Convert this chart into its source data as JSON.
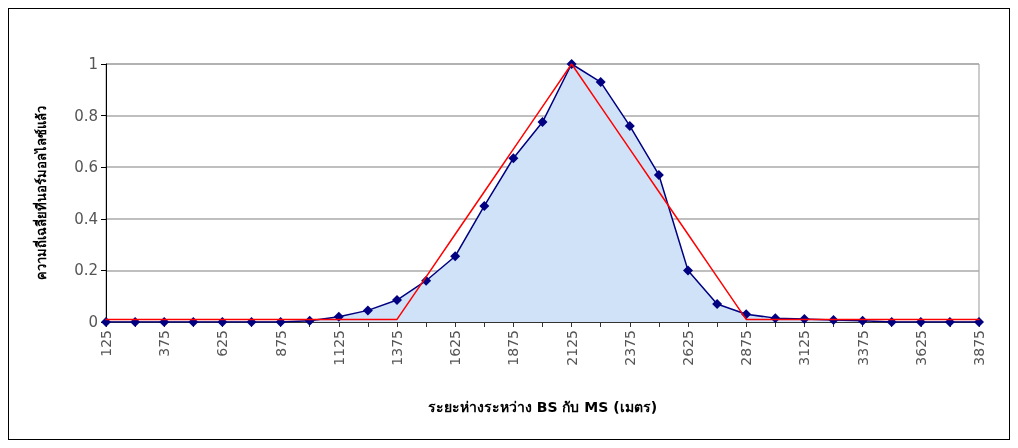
{
  "chart_data": {
    "type": "area",
    "xlabel": "ระยะห่างระหว่าง BS กับ MS (เมตร)",
    "ylabel": "ความถี่เฉลี่ยที่นอร์มอลไลซ์แล้ว",
    "categories": [
      "125",
      null,
      "375",
      null,
      "625",
      null,
      "875",
      null,
      "1125",
      null,
      "1375",
      null,
      "1625",
      null,
      "1875",
      null,
      "2125",
      null,
      "2375",
      null,
      "2625",
      null,
      "2875",
      null,
      "3125",
      null,
      "3375",
      null,
      "3625",
      null,
      "3875"
    ],
    "series": [
      {
        "color": "#000080",
        "marker": "diamond",
        "values": [
          0,
          0,
          0,
          0,
          0,
          0,
          0,
          0.005,
          0.02,
          0.045,
          0.085,
          0.16,
          0.255,
          0.45,
          0.635,
          0.775,
          1,
          0.93,
          0.76,
          0.57,
          0.2,
          0.07,
          0.03,
          0.015,
          0.012,
          0.008,
          0.005,
          0,
          0,
          0,
          0
        ]
      },
      {
        "type": "line",
        "color": "#ff0000",
        "marker": "none",
        "values": [
          0.01,
          0.01,
          0.01,
          0.01,
          0.01,
          0.01,
          0.01,
          0.01,
          0.01,
          0.01,
          0.01,
          0.175,
          0.34,
          0.505,
          0.67,
          0.835,
          1,
          0.835,
          0.67,
          0.505,
          0.34,
          0.175,
          0.01,
          0.01,
          0.01,
          0.01,
          0.01,
          0.01,
          0.01,
          0.01,
          0.01
        ]
      }
    ],
    "ylim": [
      0,
      1
    ],
    "yticks": [
      0,
      0.2,
      0.4,
      0.6,
      0.8,
      1
    ],
    "grid": "y"
  }
}
